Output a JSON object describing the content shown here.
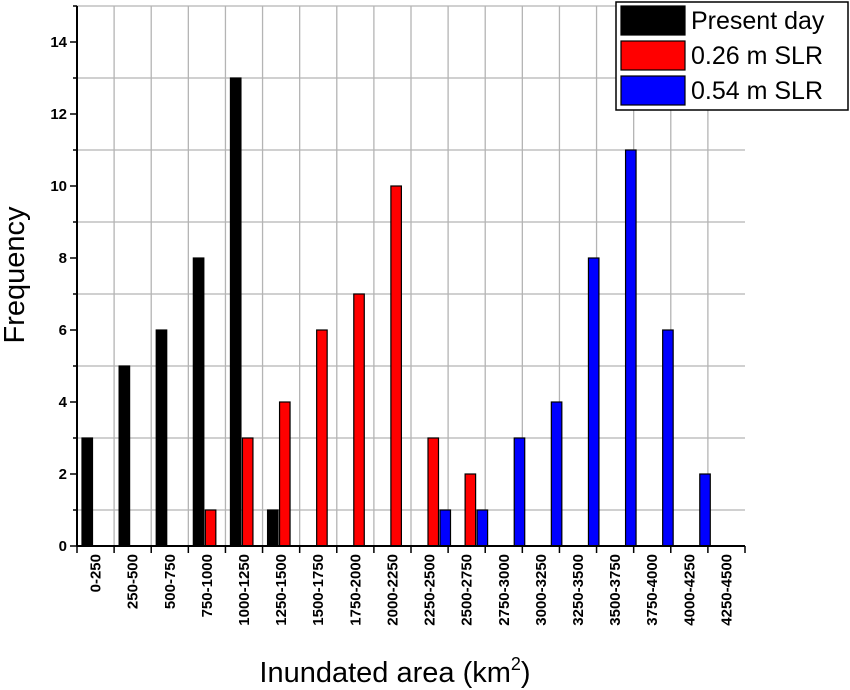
{
  "chart_data": {
    "type": "bar",
    "xlabel": "Inundated area (km",
    "xlabel_superscript": "2",
    "xlabel_close": ")",
    "ylabel": "Frequency",
    "ylim": [
      0,
      15
    ],
    "yticks": [
      0,
      2,
      4,
      6,
      8,
      10,
      12,
      14
    ],
    "grid": true,
    "legend_position": "top-right",
    "categories": [
      "0-250",
      "250-500",
      "500-750",
      "750-1000",
      "1000-1250",
      "1250-1500",
      "1500-1750",
      "1750-2000",
      "2000-2250",
      "2250-2500",
      "2500-2750",
      "2750-3000",
      "3000-3250",
      "3250-3500",
      "3500-3750",
      "3750-4000",
      "4000-4250",
      "4250-4500"
    ],
    "series": [
      {
        "name": "Present day",
        "color": "#000000",
        "values": [
          3,
          5,
          6,
          8,
          13,
          1,
          0,
          0,
          0,
          0,
          0,
          0,
          0,
          0,
          0,
          0,
          0,
          0
        ]
      },
      {
        "name": "0.26 m SLR",
        "color": "#ff0000",
        "values": [
          0,
          0,
          0,
          1,
          3,
          4,
          6,
          7,
          10,
          3,
          2,
          0,
          0,
          0,
          0,
          0,
          0,
          0
        ]
      },
      {
        "name": "0.54 m SLR",
        "color": "#0000ff",
        "values": [
          0,
          0,
          0,
          0,
          0,
          0,
          0,
          0,
          0,
          1,
          1,
          3,
          4,
          8,
          11,
          6,
          2,
          0
        ]
      }
    ]
  }
}
